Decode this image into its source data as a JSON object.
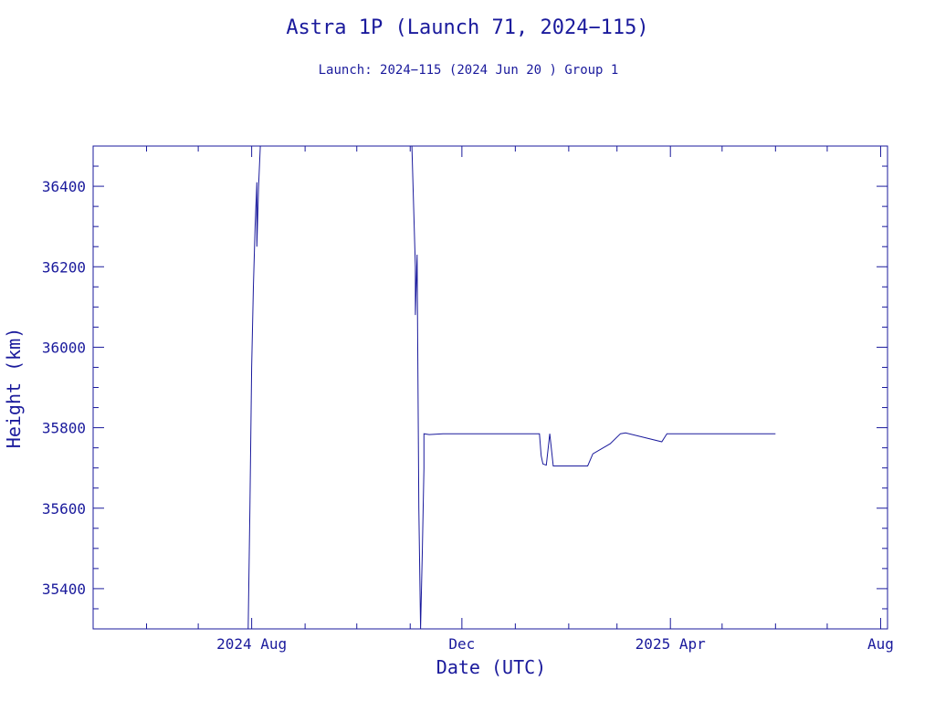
{
  "colors": {
    "ink": "#1a1a9c",
    "background": "#ffffff"
  },
  "chart_data": {
    "type": "line",
    "title": "Astra 1P (Launch 71, 2024−115)",
    "subtitle": "Launch: 2024−115  (2024 Jun 20 )  Group 1",
    "xlabel": "Date (UTC)",
    "ylabel": "Height (km)",
    "xlim": [
      "2024-05-01",
      "2025-08-05"
    ],
    "ylim": [
      35300,
      36500
    ],
    "x_ticks": [
      {
        "date": "2024-08-01",
        "label": "2024 Aug"
      },
      {
        "date": "2024-12-01",
        "label": "Dec"
      },
      {
        "date": "2025-04-01",
        "label": "2025 Apr"
      },
      {
        "date": "2025-08-01",
        "label": "Aug"
      }
    ],
    "y_ticks": [
      35400,
      35600,
      35800,
      36000,
      36200,
      36400
    ],
    "grid": false,
    "series": [
      {
        "points": [
          [
            "2024-07-30",
            35300
          ],
          [
            "2024-07-31",
            35600
          ],
          [
            "2024-08-01",
            35950
          ],
          [
            "2024-08-02",
            36150
          ],
          [
            "2024-08-03",
            36300
          ],
          [
            "2024-08-04",
            36410
          ],
          [
            "2024-08-04",
            36250
          ],
          [
            "2024-08-05",
            36400
          ],
          [
            "2024-08-06",
            36500
          ],
          [
            "2024-11-02",
            36500
          ],
          [
            "2024-11-03",
            36350
          ],
          [
            "2024-11-04",
            36200
          ],
          [
            "2024-11-04",
            36080
          ],
          [
            "2024-11-05",
            36230
          ],
          [
            "2024-11-06",
            35600
          ],
          [
            "2024-11-07",
            35300
          ],
          [
            "2024-11-08",
            35490
          ],
          [
            "2024-11-09",
            35700
          ],
          [
            "2024-11-09",
            35785
          ],
          [
            "2024-11-12",
            35783
          ],
          [
            "2024-11-20",
            35785
          ],
          [
            "2025-01-15",
            35785
          ],
          [
            "2025-01-16",
            35730
          ],
          [
            "2025-01-17",
            35710
          ],
          [
            "2025-01-19",
            35707
          ],
          [
            "2025-01-21",
            35785
          ],
          [
            "2025-01-23",
            35705
          ],
          [
            "2025-02-12",
            35705
          ],
          [
            "2025-02-15",
            35735
          ],
          [
            "2025-02-25",
            35760
          ],
          [
            "2025-03-03",
            35785
          ],
          [
            "2025-03-06",
            35787
          ],
          [
            "2025-03-27",
            35765
          ],
          [
            "2025-03-30",
            35785
          ],
          [
            "2025-06-01",
            35785
          ]
        ]
      }
    ]
  }
}
